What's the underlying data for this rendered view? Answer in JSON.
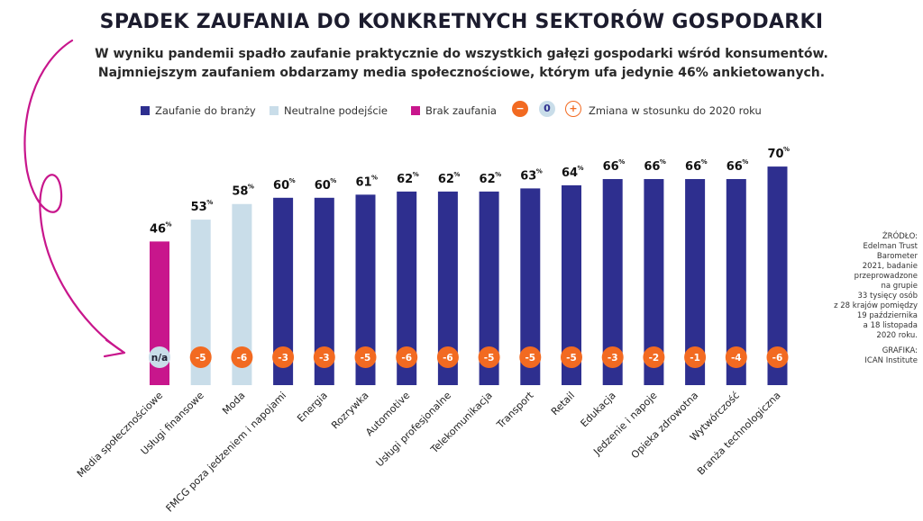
{
  "header": {
    "title": "SPADEK ZAUFANIA DO KONKRETNYCH SEKTORÓW GOSPODARKI",
    "subtitle_line1": "W wyniku pandemii spadło zaufanie praktycznie do wszystkich gałęzi gospodarki wśród konsumentów.",
    "subtitle_line2": "Najmniejszym zaufaniem obdarzamy media społecznościowe, którym ufa jedynie 46% ankietowanych."
  },
  "legend": {
    "trust": "Zaufanie do branży",
    "neutral": "Neutralne podejście",
    "distrust": "Brak zaufania",
    "minus_symbol": "−",
    "zero_symbol": "0",
    "plus_symbol": "+",
    "change": "Zmiana w stosunku do 2020 roku"
  },
  "sidenote": {
    "source_lines": [
      "ŹRÓDŁO:",
      "Edelman Trust",
      "Barometer",
      "2021, badanie",
      "przeprowadzone",
      "na grupie",
      "33 tysięcy osób",
      "z 28 krajów pomiędzy",
      "19 października",
      "a 18 listopada",
      "2020 roku."
    ],
    "graphic_lines": [
      "GRAFIKA:",
      "ICAN Institute"
    ]
  },
  "colors": {
    "trust": "#2e2f8f",
    "neutral": "#c9dde9",
    "distrust": "#c8168c",
    "change_negative": "#f26a21",
    "change_na": "#c9dde9",
    "arrow": "#c8168c"
  },
  "chart_data": {
    "type": "bar",
    "title": "SPADEK ZAUFANIA DO KONKRETNYCH SEKTORÓW GOSPODARKI",
    "value_unit": "%",
    "ylim": [
      0,
      100
    ],
    "grid": false,
    "legend_position": "top",
    "categories": [
      "Media społecznościowe",
      "Usługi finansowe",
      "Moda",
      "FMCG poza jedzeniem i napojami",
      "Energia",
      "Rozrywka",
      "Automotive",
      "Usługi profesjonalne",
      "Telekomunikacja",
      "Transport",
      "Retail",
      "Edukacja",
      "Jedzenie i napoje",
      "Opieka zdrowotna",
      "Wytwórczość",
      "Branża technologiczna"
    ],
    "values": [
      46,
      53,
      58,
      60,
      60,
      61,
      62,
      62,
      62,
      63,
      64,
      66,
      66,
      66,
      66,
      70
    ],
    "classes": [
      "distrust",
      "neutral",
      "neutral",
      "trust",
      "trust",
      "trust",
      "trust",
      "trust",
      "trust",
      "trust",
      "trust",
      "trust",
      "trust",
      "trust",
      "trust",
      "trust"
    ],
    "change_labels": [
      "n/a",
      "-5",
      "-6",
      "-3",
      "-3",
      "-5",
      "-6",
      "-6",
      "-5",
      "-5",
      "-5",
      "-3",
      "-2",
      "-1",
      "-4",
      "-6"
    ]
  }
}
